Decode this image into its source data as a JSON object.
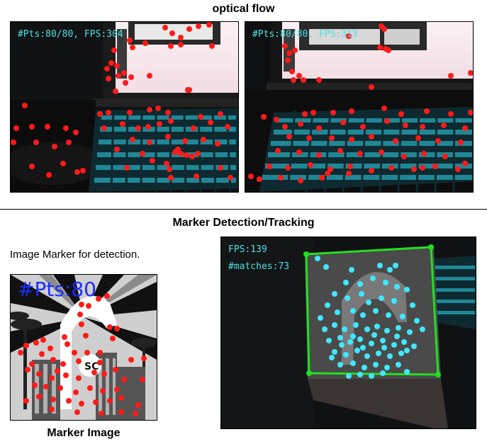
{
  "sections": {
    "optical_flow": {
      "title": "optical flow",
      "left_hud": "#Pts:80/80, FPS:304",
      "right_hud": "#Pts:80/80, FPS:313"
    },
    "marker": {
      "title": "Marker Detection/Tracking",
      "description": "Image Marker for detection.",
      "marker_overlay": "#Pts:80",
      "marker_caption": "Marker Image",
      "hud_fps": "FPS:139",
      "hud_matches": "#matches:73"
    }
  },
  "colors": {
    "feature_point": "#ff1a1a",
    "match_point": "#3fe8ff",
    "tracking_box": "#22e022",
    "hud_text": "#4fe0e0",
    "marker_overlay": "#1a2cff"
  }
}
